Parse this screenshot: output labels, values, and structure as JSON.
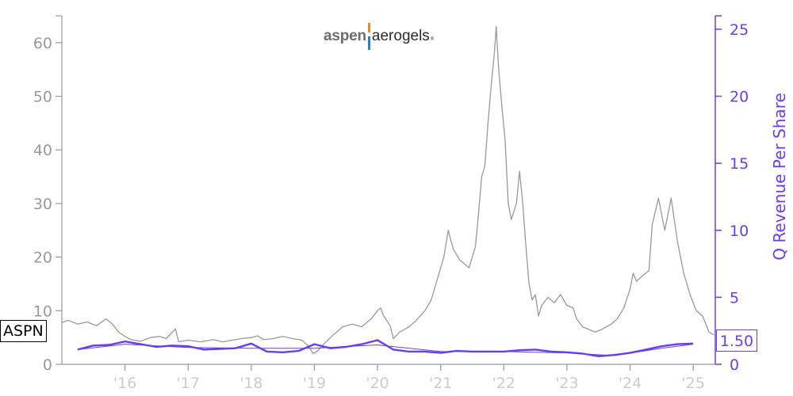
{
  "logo": {
    "part1": "aspen",
    "part2": "aerogels",
    "mark": "®"
  },
  "ticker": "ASPN",
  "last_value_label": "1.50",
  "colors": {
    "price": "#999999",
    "revenue": "#6a3df0",
    "left_axis": "#999999",
    "bottom_ticks": "#cccccc"
  },
  "chart_data": {
    "type": "line",
    "x_range": [
      2015.0,
      2025.35
    ],
    "left_axis": {
      "ticks": [
        0,
        10,
        20,
        30,
        40,
        50,
        60
      ],
      "range": [
        0,
        65
      ]
    },
    "right_axis": {
      "label": "Q Revenue Per Share",
      "ticks": [
        0,
        5,
        10,
        15,
        20,
        25
      ],
      "range": [
        0,
        26
      ]
    },
    "x_ticks": [
      {
        "label": "'16",
        "x": 2016
      },
      {
        "label": "'17",
        "x": 2017
      },
      {
        "label": "'18",
        "x": 2018
      },
      {
        "label": "'19",
        "x": 2019
      },
      {
        "label": "'20",
        "x": 2020
      },
      {
        "label": "'21",
        "x": 2021
      },
      {
        "label": "'22",
        "x": 2022
      },
      {
        "label": "'23",
        "x": 2023
      },
      {
        "label": "'24",
        "x": 2024
      },
      {
        "label": "'25",
        "x": 2025
      }
    ],
    "series": [
      {
        "axis": "left",
        "points": [
          [
            2015.0,
            7.8
          ],
          [
            2015.1,
            8.2
          ],
          [
            2015.25,
            7.5
          ],
          [
            2015.4,
            7.9
          ],
          [
            2015.55,
            7.2
          ],
          [
            2015.7,
            8.5
          ],
          [
            2015.8,
            7.5
          ],
          [
            2015.9,
            6.0
          ],
          [
            2016.0,
            5.2
          ],
          [
            2016.1,
            4.6
          ],
          [
            2016.25,
            4.3
          ],
          [
            2016.4,
            5.0
          ],
          [
            2016.55,
            5.2
          ],
          [
            2016.65,
            4.8
          ],
          [
            2016.8,
            6.6
          ],
          [
            2016.85,
            4.2
          ],
          [
            2017.0,
            4.5
          ],
          [
            2017.2,
            4.2
          ],
          [
            2017.4,
            4.6
          ],
          [
            2017.55,
            4.2
          ],
          [
            2017.7,
            4.5
          ],
          [
            2017.85,
            4.8
          ],
          [
            2018.0,
            5.0
          ],
          [
            2018.1,
            5.3
          ],
          [
            2018.2,
            4.6
          ],
          [
            2018.35,
            4.8
          ],
          [
            2018.5,
            5.2
          ],
          [
            2018.65,
            4.8
          ],
          [
            2018.8,
            4.5
          ],
          [
            2018.9,
            3.5
          ],
          [
            2018.98,
            2.0
          ],
          [
            2019.05,
            2.5
          ],
          [
            2019.15,
            3.8
          ],
          [
            2019.3,
            5.5
          ],
          [
            2019.45,
            7.0
          ],
          [
            2019.6,
            7.5
          ],
          [
            2019.75,
            7.0
          ],
          [
            2019.9,
            8.5
          ],
          [
            2020.0,
            10.0
          ],
          [
            2020.05,
            10.5
          ],
          [
            2020.1,
            9.0
          ],
          [
            2020.2,
            7.2
          ],
          [
            2020.25,
            4.8
          ],
          [
            2020.35,
            6.0
          ],
          [
            2020.5,
            7.0
          ],
          [
            2020.6,
            8.0
          ],
          [
            2020.75,
            10.0
          ],
          [
            2020.85,
            12.0
          ],
          [
            2020.95,
            16.0
          ],
          [
            2021.05,
            20.0
          ],
          [
            2021.12,
            25.0
          ],
          [
            2021.2,
            21.5
          ],
          [
            2021.3,
            19.5
          ],
          [
            2021.45,
            18.0
          ],
          [
            2021.55,
            22.0
          ],
          [
            2021.6,
            28.0
          ],
          [
            2021.65,
            35.0
          ],
          [
            2021.7,
            37.0
          ],
          [
            2021.75,
            45.0
          ],
          [
            2021.8,
            52.0
          ],
          [
            2021.85,
            58.0
          ],
          [
            2021.88,
            63.0
          ],
          [
            2021.92,
            55.0
          ],
          [
            2021.97,
            48.0
          ],
          [
            2022.02,
            42.0
          ],
          [
            2022.07,
            30.0
          ],
          [
            2022.12,
            27.0
          ],
          [
            2022.2,
            30.0
          ],
          [
            2022.25,
            36.0
          ],
          [
            2022.3,
            30.0
          ],
          [
            2022.35,
            22.0
          ],
          [
            2022.4,
            15.0
          ],
          [
            2022.45,
            12.0
          ],
          [
            2022.5,
            13.0
          ],
          [
            2022.55,
            9.0
          ],
          [
            2022.6,
            11.0
          ],
          [
            2022.7,
            12.5
          ],
          [
            2022.8,
            11.5
          ],
          [
            2022.9,
            13.0
          ],
          [
            2023.0,
            11.0
          ],
          [
            2023.1,
            10.5
          ],
          [
            2023.15,
            8.5
          ],
          [
            2023.25,
            7.0
          ],
          [
            2023.35,
            6.5
          ],
          [
            2023.45,
            6.0
          ],
          [
            2023.55,
            6.5
          ],
          [
            2023.7,
            7.5
          ],
          [
            2023.8,
            8.5
          ],
          [
            2023.9,
            10.5
          ],
          [
            2024.0,
            14.0
          ],
          [
            2024.05,
            17.0
          ],
          [
            2024.1,
            15.5
          ],
          [
            2024.2,
            16.5
          ],
          [
            2024.3,
            17.5
          ],
          [
            2024.35,
            26.0
          ],
          [
            2024.45,
            31.0
          ],
          [
            2024.55,
            25.0
          ],
          [
            2024.65,
            31.0
          ],
          [
            2024.75,
            23.0
          ],
          [
            2024.85,
            17.0
          ],
          [
            2024.95,
            13.0
          ],
          [
            2025.05,
            10.0
          ],
          [
            2025.15,
            9.0
          ],
          [
            2025.25,
            6.0
          ],
          [
            2025.33,
            5.5
          ]
        ]
      },
      {
        "axis": "right",
        "points": [
          [
            2015.25,
            1.1
          ],
          [
            2015.5,
            1.4
          ],
          [
            2015.75,
            1.45
          ],
          [
            2016.0,
            1.7
          ],
          [
            2016.25,
            1.5
          ],
          [
            2016.5,
            1.3
          ],
          [
            2016.75,
            1.4
          ],
          [
            2017.0,
            1.35
          ],
          [
            2017.25,
            1.1
          ],
          [
            2017.5,
            1.15
          ],
          [
            2017.75,
            1.2
          ],
          [
            2018.0,
            1.55
          ],
          [
            2018.25,
            0.95
          ],
          [
            2018.5,
            0.9
          ],
          [
            2018.75,
            1.0
          ],
          [
            2019.0,
            1.5
          ],
          [
            2019.25,
            1.2
          ],
          [
            2019.5,
            1.3
          ],
          [
            2019.75,
            1.5
          ],
          [
            2020.0,
            1.8
          ],
          [
            2020.25,
            1.1
          ],
          [
            2020.5,
            0.95
          ],
          [
            2020.75,
            0.95
          ],
          [
            2021.0,
            0.85
          ],
          [
            2021.25,
            1.0
          ],
          [
            2021.5,
            0.95
          ],
          [
            2021.75,
            0.95
          ],
          [
            2022.0,
            0.95
          ],
          [
            2022.25,
            1.05
          ],
          [
            2022.5,
            1.1
          ],
          [
            2022.75,
            0.95
          ],
          [
            2023.0,
            0.9
          ],
          [
            2023.25,
            0.8
          ],
          [
            2023.5,
            0.6
          ],
          [
            2023.75,
            0.7
          ],
          [
            2024.0,
            0.85
          ],
          [
            2024.25,
            1.1
          ],
          [
            2024.5,
            1.35
          ],
          [
            2024.75,
            1.5
          ],
          [
            2025.0,
            1.55
          ]
        ]
      },
      {
        "axis": "right",
        "points": [
          [
            2015.25,
            1.1
          ],
          [
            2016.0,
            1.5
          ],
          [
            2017.0,
            1.25
          ],
          [
            2018.0,
            1.2
          ],
          [
            2019.0,
            1.2
          ],
          [
            2020.0,
            1.45
          ],
          [
            2021.0,
            0.95
          ],
          [
            2022.0,
            0.95
          ],
          [
            2023.0,
            0.85
          ],
          [
            2023.75,
            0.65
          ],
          [
            2024.5,
            1.2
          ],
          [
            2025.0,
            1.5
          ]
        ]
      }
    ]
  }
}
